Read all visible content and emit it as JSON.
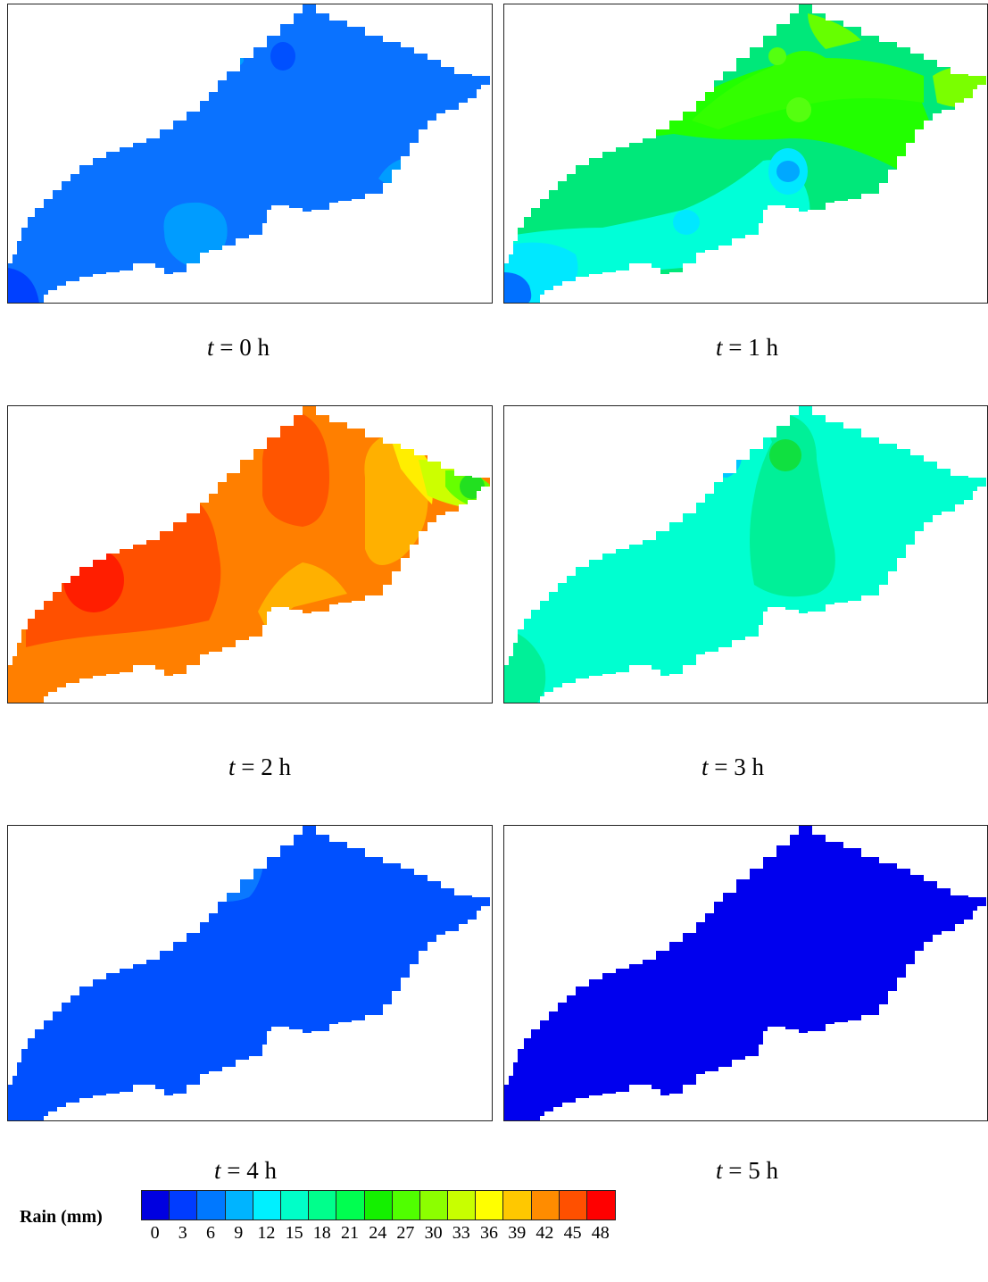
{
  "panels": [
    {
      "caption_var": "t",
      "caption_rest": " = 0 h",
      "base": "#0a72ff"
    },
    {
      "caption_var": "t",
      "caption_rest": " = 1 h",
      "base": "#00e87a"
    },
    {
      "caption_var": "t",
      "caption_rest": " = 2 h",
      "base": "#ff7f00"
    },
    {
      "caption_var": "t",
      "caption_rest": " = 3 h",
      "base": "#00ffd0"
    },
    {
      "caption_var": "t",
      "caption_rest": " = 4 h",
      "base": "#0050ff"
    },
    {
      "caption_var": "t",
      "caption_rest": " = 5 h",
      "base": "#0000ee"
    }
  ],
  "legend": {
    "title": "Rain (mm)",
    "ticks": [
      "0",
      "3",
      "6",
      "9",
      "12",
      "15",
      "18",
      "21",
      "24",
      "27",
      "30",
      "33",
      "36",
      "39",
      "42",
      "45",
      "48"
    ],
    "colors": [
      "#0000e0",
      "#003cff",
      "#0078ff",
      "#00b4ff",
      "#00f0ff",
      "#00ffc8",
      "#00ff8c",
      "#00ff50",
      "#14f000",
      "#50ff00",
      "#8cff00",
      "#c8ff00",
      "#ffff00",
      "#ffc800",
      "#ff8c00",
      "#ff5000",
      "#ff0000"
    ]
  }
}
